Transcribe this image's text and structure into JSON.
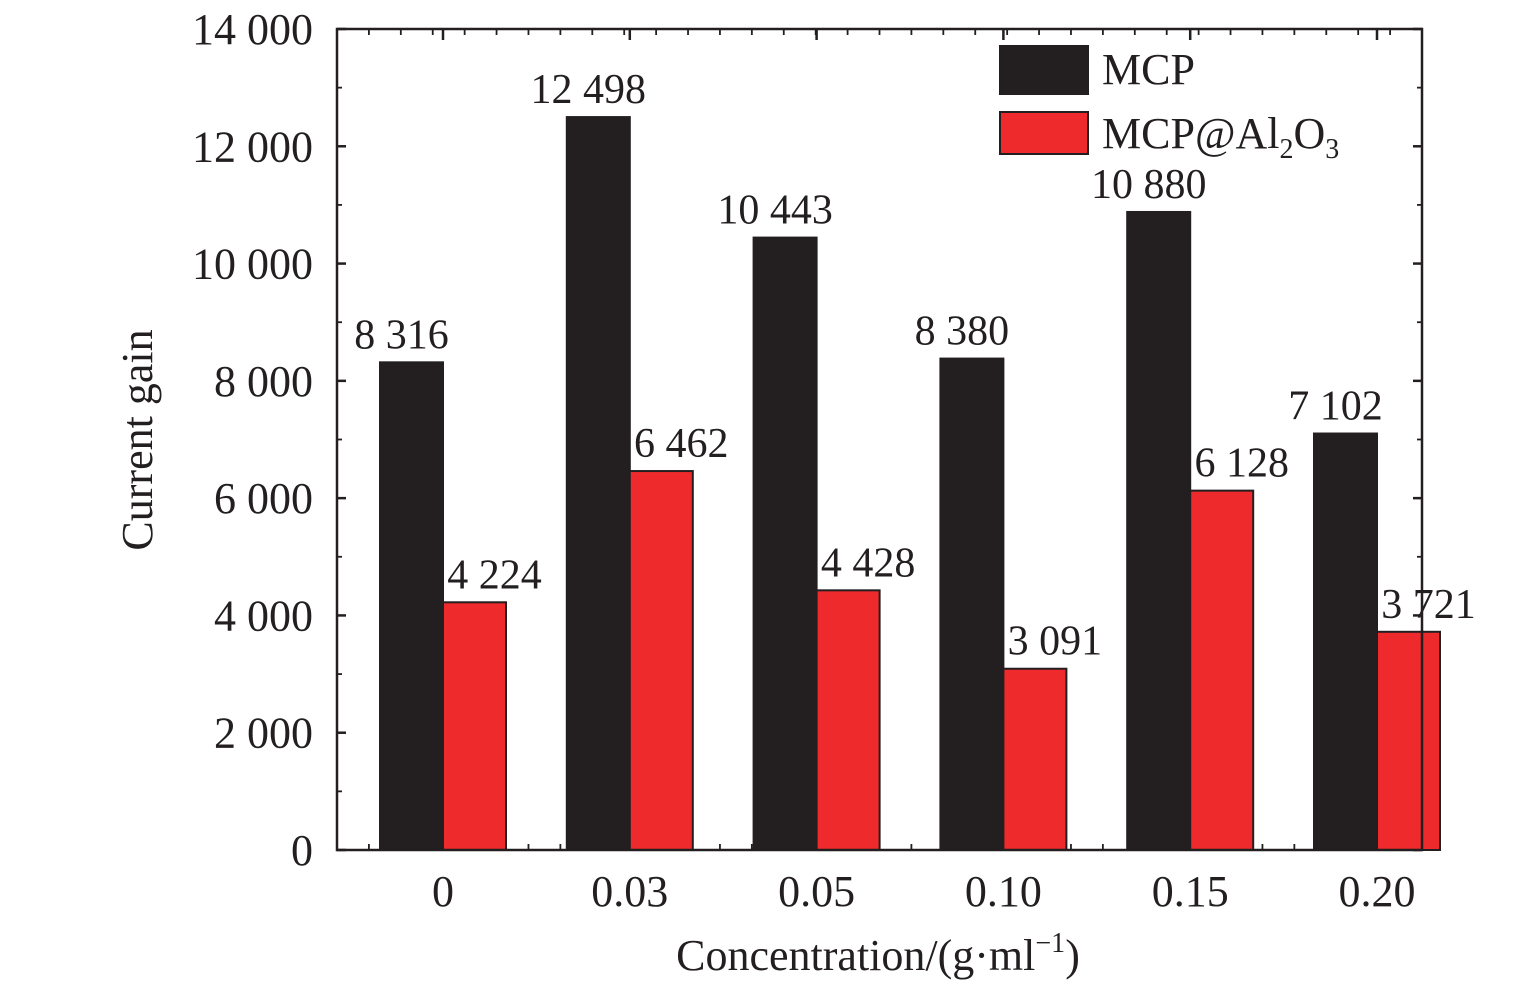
{
  "chart_data": {
    "type": "bar",
    "title": "",
    "xlabel": "Concentration/(g·ml",
    "xlabel_sup": "−1",
    "xlabel_close": ")",
    "ylabel": "Current gain",
    "categories": [
      "0",
      "0.03",
      "0.05",
      "0.10",
      "0.15",
      "0.20"
    ],
    "ylim": [
      0,
      14000
    ],
    "yticks": [
      0,
      2000,
      4000,
      6000,
      8000,
      10000,
      12000,
      14000
    ],
    "ytick_labels": [
      "0",
      "2 000",
      "4 000",
      "6 000",
      "8 000",
      "10 000",
      "12 000",
      "14 000"
    ],
    "series": [
      {
        "name": "MCP",
        "legend_label": "MCP",
        "color": "#231f20",
        "values": [
          8316,
          12498,
          10443,
          8380,
          10880,
          7102
        ],
        "labels": [
          "8 316",
          "12 498",
          "10 443",
          "8 380",
          "10 880",
          "7 102"
        ]
      },
      {
        "name": "MCP@Al2O3",
        "legend_label": "MCP@Al",
        "legend_sub1": "2",
        "legend_mid": "O",
        "legend_sub2": "3",
        "color": "#ee2a2c",
        "values": [
          4224,
          6462,
          4428,
          3091,
          6128,
          3721
        ],
        "labels": [
          "4 224",
          "6 462",
          "4 428",
          "3 091",
          "6 128",
          "3 721"
        ]
      }
    ],
    "legend_position": "top-right",
    "grid": false
  }
}
